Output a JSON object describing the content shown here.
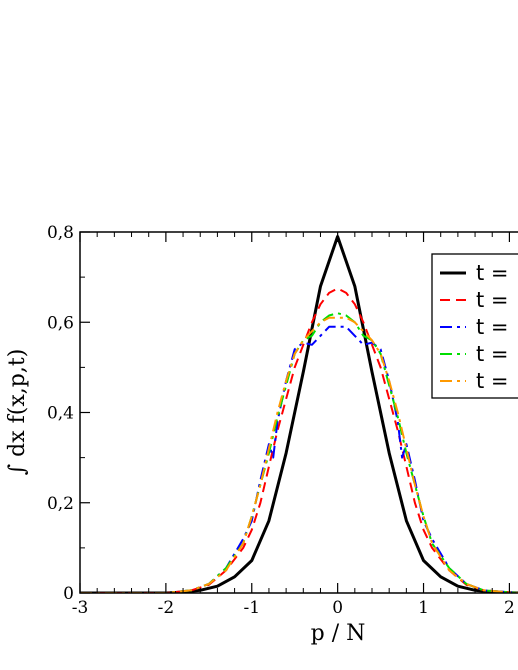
{
  "chart_data": {
    "type": "line",
    "xlabel": "p / N",
    "ylabel": "∫ dx f(x,p,t)",
    "xlim": [
      -3,
      2.1
    ],
    "ylim": [
      0,
      0.8
    ],
    "x_ticks": [
      "-3",
      "-2",
      "-1",
      "0",
      "1",
      "2"
    ],
    "y_ticks": [
      "0",
      "0,2",
      "0,4",
      "0,6",
      "0,8"
    ],
    "grid": false,
    "legend_position": "top-right",
    "series": [
      {
        "name": "t =",
        "color": "#000000",
        "style": "solid",
        "points": [
          [
            -3,
            0
          ],
          [
            -2,
            0.0
          ],
          [
            -1.8,
            0.002
          ],
          [
            -1.6,
            0.006
          ],
          [
            -1.4,
            0.015
          ],
          [
            -1.2,
            0.036
          ],
          [
            -1.0,
            0.072
          ],
          [
            -0.8,
            0.16
          ],
          [
            -0.6,
            0.31
          ],
          [
            -0.4,
            0.49
          ],
          [
            -0.2,
            0.68
          ],
          [
            0,
            0.79
          ],
          [
            0.2,
            0.68
          ],
          [
            0.4,
            0.49
          ],
          [
            0.6,
            0.31
          ],
          [
            0.8,
            0.16
          ],
          [
            1.0,
            0.072
          ],
          [
            1.2,
            0.036
          ],
          [
            1.4,
            0.015
          ],
          [
            1.6,
            0.006
          ],
          [
            1.8,
            0.002
          ],
          [
            2.1,
            0
          ]
        ]
      },
      {
        "name": "t =",
        "color": "#ff0000",
        "style": "dashed",
        "points": [
          [
            -3,
            0
          ],
          [
            -2,
            0.0
          ],
          [
            -1.7,
            0.006
          ],
          [
            -1.5,
            0.018
          ],
          [
            -1.3,
            0.05
          ],
          [
            -1.1,
            0.1
          ],
          [
            -1.0,
            0.14
          ],
          [
            -0.9,
            0.2
          ],
          [
            -0.8,
            0.28
          ],
          [
            -0.7,
            0.36
          ],
          [
            -0.6,
            0.43
          ],
          [
            -0.5,
            0.5
          ],
          [
            -0.4,
            0.55
          ],
          [
            -0.3,
            0.6
          ],
          [
            -0.2,
            0.64
          ],
          [
            -0.1,
            0.665
          ],
          [
            0,
            0.675
          ],
          [
            0.1,
            0.665
          ],
          [
            0.2,
            0.64
          ],
          [
            0.3,
            0.6
          ],
          [
            0.4,
            0.55
          ],
          [
            0.5,
            0.5
          ],
          [
            0.6,
            0.43
          ],
          [
            0.7,
            0.36
          ],
          [
            0.8,
            0.28
          ],
          [
            0.9,
            0.2
          ],
          [
            1.0,
            0.14
          ],
          [
            1.1,
            0.1
          ],
          [
            1.3,
            0.05
          ],
          [
            1.5,
            0.018
          ],
          [
            1.7,
            0.006
          ],
          [
            2.1,
            0
          ]
        ]
      },
      {
        "name": "t =",
        "color": "#0000ff",
        "style": "dash-dot",
        "points": [
          [
            -3,
            0
          ],
          [
            -2,
            0.0
          ],
          [
            -1.7,
            0.006
          ],
          [
            -1.5,
            0.02
          ],
          [
            -1.3,
            0.055
          ],
          [
            -1.1,
            0.12
          ],
          [
            -1.0,
            0.16
          ],
          [
            -0.9,
            0.25
          ],
          [
            -0.8,
            0.33
          ],
          [
            -0.75,
            0.3
          ],
          [
            -0.7,
            0.38
          ],
          [
            -0.6,
            0.47
          ],
          [
            -0.5,
            0.54
          ],
          [
            -0.4,
            0.555
          ],
          [
            -0.3,
            0.55
          ],
          [
            -0.2,
            0.57
          ],
          [
            -0.1,
            0.59
          ],
          [
            0,
            0.59
          ],
          [
            0.1,
            0.59
          ],
          [
            0.2,
            0.57
          ],
          [
            0.3,
            0.55
          ],
          [
            0.4,
            0.555
          ],
          [
            0.5,
            0.54
          ],
          [
            0.6,
            0.47
          ],
          [
            0.7,
            0.38
          ],
          [
            0.75,
            0.3
          ],
          [
            0.8,
            0.33
          ],
          [
            0.9,
            0.25
          ],
          [
            1.0,
            0.16
          ],
          [
            1.1,
            0.12
          ],
          [
            1.3,
            0.055
          ],
          [
            1.5,
            0.02
          ],
          [
            1.7,
            0.006
          ],
          [
            2.1,
            0
          ]
        ]
      },
      {
        "name": "t =",
        "color": "#00dd00",
        "style": "dash-dot",
        "points": [
          [
            -3,
            0
          ],
          [
            -2,
            0.0
          ],
          [
            -1.7,
            0.006
          ],
          [
            -1.5,
            0.02
          ],
          [
            -1.3,
            0.055
          ],
          [
            -1.1,
            0.11
          ],
          [
            -1.0,
            0.17
          ],
          [
            -0.9,
            0.24
          ],
          [
            -0.8,
            0.31
          ],
          [
            -0.7,
            0.39
          ],
          [
            -0.6,
            0.46
          ],
          [
            -0.5,
            0.53
          ],
          [
            -0.4,
            0.56
          ],
          [
            -0.3,
            0.57
          ],
          [
            -0.2,
            0.6
          ],
          [
            -0.1,
            0.615
          ],
          [
            0,
            0.62
          ],
          [
            0.1,
            0.615
          ],
          [
            0.2,
            0.6
          ],
          [
            0.3,
            0.57
          ],
          [
            0.4,
            0.56
          ],
          [
            0.5,
            0.53
          ],
          [
            0.6,
            0.46
          ],
          [
            0.7,
            0.39
          ],
          [
            0.8,
            0.31
          ],
          [
            0.9,
            0.24
          ],
          [
            1.0,
            0.17
          ],
          [
            1.1,
            0.11
          ],
          [
            1.3,
            0.055
          ],
          [
            1.5,
            0.02
          ],
          [
            1.7,
            0.006
          ],
          [
            2.1,
            0
          ]
        ]
      },
      {
        "name": "t =",
        "color": "#ff9900",
        "style": "dash-dot",
        "points": [
          [
            -3,
            0
          ],
          [
            -2,
            0.0
          ],
          [
            -1.7,
            0.006
          ],
          [
            -1.5,
            0.02
          ],
          [
            -1.3,
            0.05
          ],
          [
            -1.1,
            0.11
          ],
          [
            -1.0,
            0.17
          ],
          [
            -0.9,
            0.24
          ],
          [
            -0.8,
            0.32
          ],
          [
            -0.7,
            0.4
          ],
          [
            -0.6,
            0.47
          ],
          [
            -0.5,
            0.53
          ],
          [
            -0.4,
            0.56
          ],
          [
            -0.3,
            0.58
          ],
          [
            -0.2,
            0.6
          ],
          [
            -0.1,
            0.61
          ],
          [
            0,
            0.61
          ],
          [
            0.1,
            0.61
          ],
          [
            0.2,
            0.6
          ],
          [
            0.3,
            0.58
          ],
          [
            0.4,
            0.56
          ],
          [
            0.5,
            0.53
          ],
          [
            0.6,
            0.47
          ],
          [
            0.7,
            0.4
          ],
          [
            0.8,
            0.32
          ],
          [
            0.9,
            0.24
          ],
          [
            1.0,
            0.17
          ],
          [
            1.1,
            0.11
          ],
          [
            1.3,
            0.05
          ],
          [
            1.5,
            0.02
          ],
          [
            1.7,
            0.006
          ],
          [
            2.1,
            0
          ]
        ]
      }
    ]
  }
}
